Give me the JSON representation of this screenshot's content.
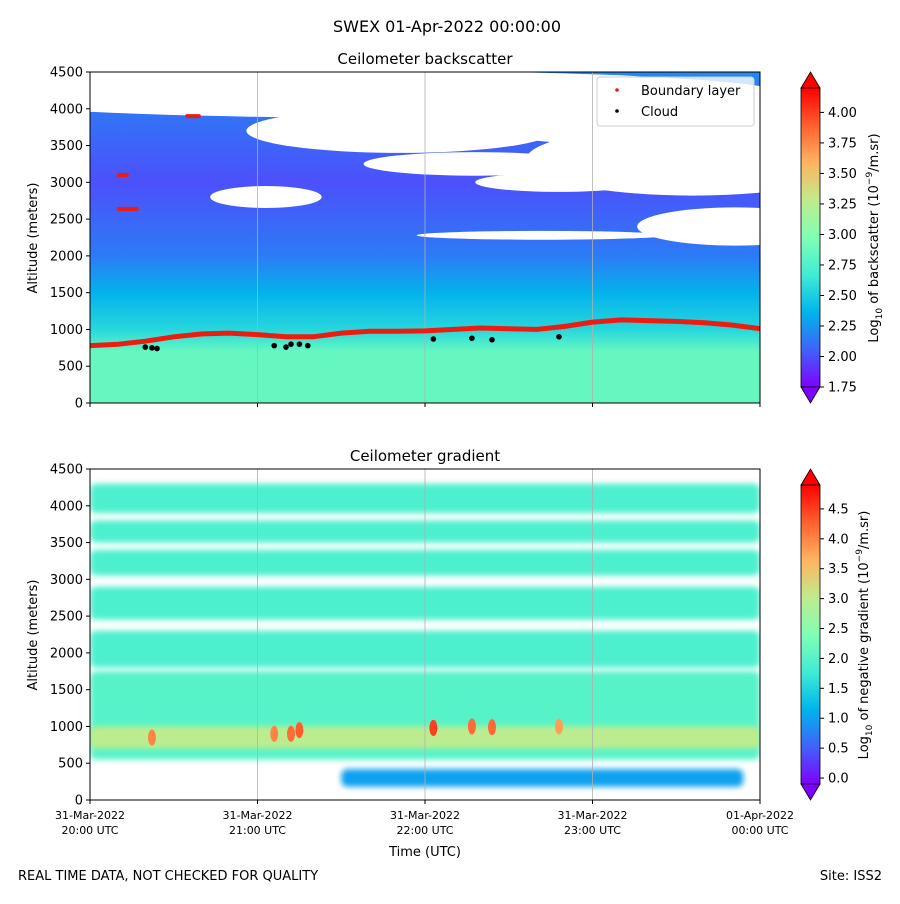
{
  "figure": {
    "suptitle": "SWEX 01-Apr-2022 00:00:00",
    "footer_left": "REAL TIME DATA, NOT CHECKED FOR QUALITY",
    "footer_right": "Site: ISS2"
  },
  "colors": {
    "boundary": "#ee1c10",
    "cloud": "#000000",
    "grid": "#b0b0b0",
    "rainbow": [
      "#8000ff",
      "#4062fa",
      "#00b5eb",
      "#40ecd4",
      "#80ffb4",
      "#c0eb8d",
      "#ffb360",
      "#ff6030",
      "#ff0000"
    ]
  },
  "chart_data": [
    {
      "type": "heatmap",
      "title": "Ceilometer backscatter",
      "xlabel": "",
      "ylabel": "Altitude (meters)",
      "xlim_hours": [
        20,
        24
      ],
      "ylim": [
        0,
        4500
      ],
      "y_ticks": [
        "0",
        "500",
        "1000",
        "1500",
        "2000",
        "2500",
        "3000",
        "3500",
        "4000",
        "4500"
      ],
      "y_tick_values": [
        0,
        500,
        1000,
        1500,
        2000,
        2500,
        3000,
        3500,
        4000,
        4500
      ],
      "grid": "vertical",
      "colorbar": {
        "label_prefix": "Log",
        "label_sub": "10",
        "label_mid": " of backscatter (10",
        "label_sup": "−9",
        "label_end": "/m.sr)",
        "min": 1.75,
        "max": 4.2,
        "ticks": [
          "1.75",
          "2.00",
          "2.25",
          "2.50",
          "2.75",
          "3.00",
          "3.25",
          "3.50",
          "3.75",
          "4.00"
        ],
        "tick_values": [
          1.75,
          2.0,
          2.25,
          2.5,
          2.75,
          3.0,
          3.25,
          3.5,
          3.75,
          4.0
        ],
        "extend": "both"
      },
      "legend": {
        "location": "top-right",
        "entries": [
          {
            "label": "Boundary layer",
            "color": "#ee1c10"
          },
          {
            "label": "Cloud",
            "color": "#000000"
          }
        ]
      },
      "field_profile": [
        {
          "altitude": 0,
          "value": 2.85
        },
        {
          "altitude": 700,
          "value": 2.85
        },
        {
          "altitude": 1000,
          "value": 2.55
        },
        {
          "altitude": 1500,
          "value": 2.35
        },
        {
          "altitude": 2000,
          "value": 2.15
        },
        {
          "altitude": 3000,
          "value": 2.0
        },
        {
          "altitude": 4500,
          "value": 2.2
        }
      ],
      "boundary_layer": {
        "time": [
          20.0,
          20.17,
          20.33,
          20.5,
          20.67,
          20.83,
          21.0,
          21.17,
          21.33,
          21.5,
          21.67,
          21.83,
          22.0,
          22.17,
          22.33,
          22.5,
          22.67,
          22.83,
          23.0,
          23.17,
          23.33,
          23.5,
          23.67,
          23.83,
          24.0
        ],
        "altitude": [
          780,
          800,
          840,
          900,
          940,
          950,
          930,
          900,
          900,
          950,
          975,
          975,
          980,
          1000,
          1020,
          1010,
          1000,
          1040,
          1100,
          1130,
          1120,
          1110,
          1090,
          1060,
          1010
        ],
        "elevated": [
          {
            "time": [
              20.17,
              20.28
            ],
            "altitude": 2640
          },
          {
            "time": [
              20.17,
              20.22
            ],
            "altitude": 3100
          },
          {
            "time": [
              20.58,
              20.65
            ],
            "altitude": 3900
          }
        ]
      },
      "cloud": {
        "time": [
          20.33,
          20.37,
          20.4,
          21.1,
          21.17,
          21.2,
          21.25,
          21.3,
          22.05,
          22.28,
          22.4,
          22.8
        ],
        "altitude": [
          760,
          750,
          740,
          780,
          760,
          800,
          800,
          780,
          870,
          880,
          860,
          900
        ]
      }
    },
    {
      "type": "heatmap",
      "title": "Ceilometer gradient",
      "xlabel": "Time (UTC)",
      "ylabel": "Altitude (meters)",
      "xlim_hours": [
        20,
        24
      ],
      "ylim": [
        0,
        4500
      ],
      "y_ticks": [
        "0",
        "500",
        "1000",
        "1500",
        "2000",
        "2500",
        "3000",
        "3500",
        "4000",
        "4500"
      ],
      "y_tick_values": [
        0,
        500,
        1000,
        1500,
        2000,
        2500,
        3000,
        3500,
        4000,
        4500
      ],
      "x_ticks": [
        {
          "line1": "31-Mar-2022",
          "line2": "20:00 UTC",
          "hour": 20
        },
        {
          "line1": "31-Mar-2022",
          "line2": "21:00 UTC",
          "hour": 21
        },
        {
          "line1": "31-Mar-2022",
          "line2": "22:00 UTC",
          "hour": 22
        },
        {
          "line1": "31-Mar-2022",
          "line2": "23:00 UTC",
          "hour": 23
        },
        {
          "line1": "01-Apr-2022",
          "line2": "00:00 UTC",
          "hour": 24
        }
      ],
      "grid": "vertical",
      "colorbar": {
        "label_prefix": "Log",
        "label_sub": "10",
        "label_mid": " of negative gradient (10",
        "label_sup": "−9",
        "label_end": "/m.sr)",
        "min": -0.1,
        "max": 4.9,
        "ticks": [
          "0.0",
          "0.5",
          "1.0",
          "1.5",
          "2.0",
          "2.5",
          "3.0",
          "3.5",
          "4.0",
          "4.5"
        ],
        "tick_values": [
          0.0,
          0.5,
          1.0,
          1.5,
          2.0,
          2.5,
          3.0,
          3.5,
          4.0,
          4.5
        ],
        "extend": "both"
      },
      "layers": [
        {
          "altitude_range": [
            550,
            1750
          ],
          "value": 2.0
        },
        {
          "altitude_range": [
            700,
            1000
          ],
          "value": 3.0
        },
        {
          "altitude_range": [
            180,
            420
          ],
          "value": 1.0,
          "time_range": [
            21.5,
            23.9
          ]
        },
        {
          "altitude_range": [
            1800,
            2300
          ],
          "value": 1.9
        },
        {
          "altitude_range": [
            2450,
            2900
          ],
          "value": 1.9
        },
        {
          "altitude_range": [
            3050,
            3400
          ],
          "value": 1.9
        },
        {
          "altitude_range": [
            3500,
            3800
          ],
          "value": 1.9
        },
        {
          "altitude_range": [
            3900,
            4300
          ],
          "value": 1.9
        }
      ],
      "hotspots": {
        "time": [
          20.37,
          21.1,
          21.2,
          21.25,
          22.05,
          22.28,
          22.4,
          22.8
        ],
        "altitude": [
          850,
          900,
          900,
          950,
          980,
          1000,
          990,
          1000
        ],
        "value": [
          4.0,
          4.0,
          4.2,
          4.3,
          4.5,
          4.2,
          4.2,
          3.8
        ]
      }
    }
  ]
}
